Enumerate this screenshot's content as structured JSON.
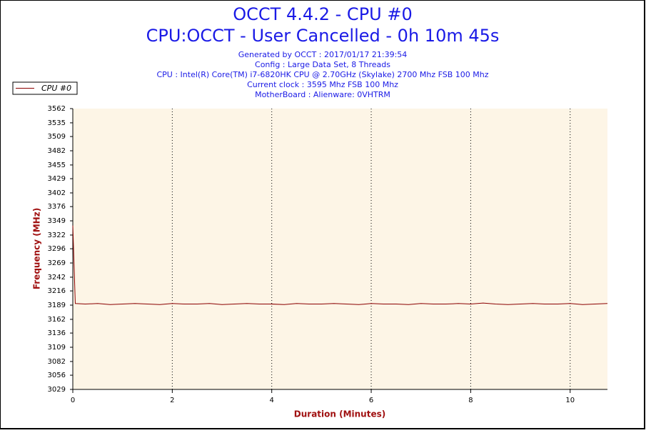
{
  "chart_data": {
    "type": "line",
    "title": "OCCT 4.4.2 - CPU #0",
    "subtitle": "CPU:OCCT - User Cancelled - 0h 10m 45s",
    "info": [
      "Generated by OCCT : 2017/01/17 21:39:54",
      "Config : Large Data Set, 8 Threads",
      "CPU : Intel(R) Core(TM) i7-6820HK CPU @ 2.70GHz (Skylake) 2700 Mhz FSB 100 Mhz",
      "Current clock : 3595 Mhz FSB 100 Mhz",
      "MotherBoard : Alienware: 0VHTRM"
    ],
    "xlabel": "Duration (Minutes)",
    "ylabel": "Frequency (MHz)",
    "xlim": [
      0,
      10.75
    ],
    "xticks": [
      0,
      2,
      4,
      6,
      8,
      10
    ],
    "ylim": [
      3029,
      3562
    ],
    "yticks": [
      3029,
      3056,
      3082,
      3109,
      3136,
      3162,
      3189,
      3216,
      3242,
      3269,
      3296,
      3322,
      3349,
      3376,
      3402,
      3429,
      3455,
      3482,
      3509,
      3535,
      3562
    ],
    "grid": true,
    "legend": "top-left",
    "series": [
      {
        "name": "CPU #0",
        "color": "#8b0000",
        "x": [
          0,
          0.05,
          0.25,
          0.5,
          0.75,
          1,
          1.25,
          1.5,
          1.75,
          2,
          2.25,
          2.5,
          2.75,
          3,
          3.25,
          3.5,
          3.75,
          4,
          4.25,
          4.5,
          4.75,
          5,
          5.25,
          5.5,
          5.75,
          6,
          6.25,
          6.5,
          6.75,
          7,
          7.25,
          7.5,
          7.75,
          8,
          8.25,
          8.5,
          8.75,
          9,
          9.25,
          9.5,
          9.75,
          10,
          10.25,
          10.5,
          10.75
        ],
        "values": [
          3340,
          3192,
          3191,
          3192,
          3190,
          3191,
          3192,
          3191,
          3190,
          3192,
          3191,
          3191,
          3192,
          3190,
          3191,
          3192,
          3191,
          3191,
          3190,
          3192,
          3191,
          3191,
          3192,
          3191,
          3190,
          3192,
          3191,
          3191,
          3190,
          3192,
          3191,
          3191,
          3192,
          3191,
          3193,
          3191,
          3190,
          3191,
          3192,
          3191,
          3191,
          3192,
          3190,
          3191,
          3192
        ]
      }
    ]
  }
}
